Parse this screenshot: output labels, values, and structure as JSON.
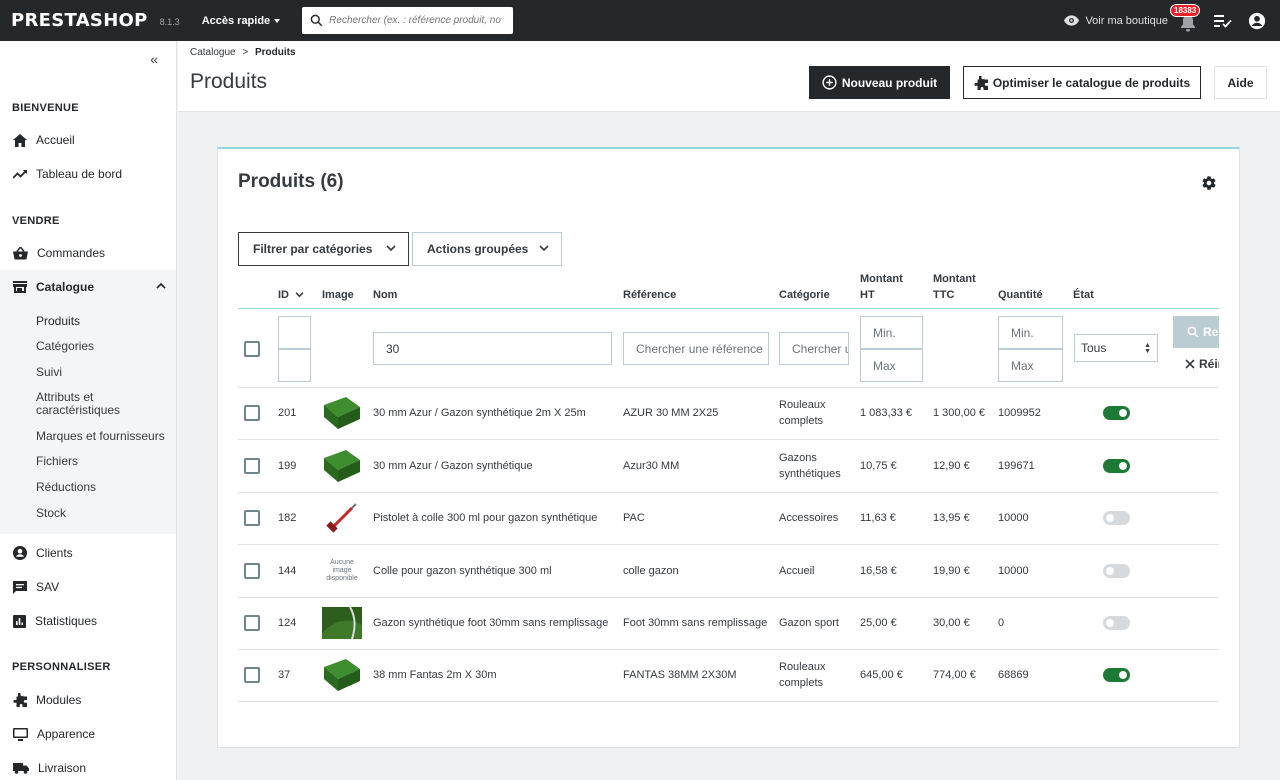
{
  "header": {
    "logo": "PRESTASHOP",
    "version": "8.1.3",
    "quick_access": "Accès rapide",
    "search_placeholder": "Rechercher (ex. : référence produit, no",
    "view_shop": "Voir ma boutique",
    "notif_count": "18383"
  },
  "sidebar": {
    "sections": {
      "welcome": "BIENVENUE",
      "sell": "VENDRE",
      "customize": "PERSONNALISER"
    },
    "items": {
      "home": "Accueil",
      "dashboard": "Tableau de bord",
      "orders": "Commandes",
      "catalog": "Catalogue",
      "clients": "Clients",
      "sav": "SAV",
      "stats": "Statistiques",
      "modules": "Modules",
      "appearance": "Apparence",
      "shipping": "Livraison"
    },
    "catalog_sub": [
      "Produits",
      "Catégories",
      "Suivi",
      "Attributs et caractéristiques",
      "Marques et fournisseurs",
      "Fichiers",
      "Réductions",
      "Stock"
    ]
  },
  "page": {
    "breadcrumb_parent": "Catalogue",
    "breadcrumb_sep": ">",
    "breadcrumb_current": "Produits",
    "title": "Produits",
    "new_product": "Nouveau produit",
    "optimize": "Optimiser le catalogue de produits",
    "help": "Aide"
  },
  "card": {
    "title": "Produits (6)",
    "filter_categories": "Filtrer par catégories",
    "bulk_actions": "Actions groupées"
  },
  "table": {
    "headers": {
      "id": "ID",
      "image": "Image",
      "name": "Nom",
      "reference": "Référence",
      "category": "Catégorie",
      "price_ht_1": "Montant",
      "price_ht_2": "HT",
      "price_ttc_1": "Montant",
      "price_ttc_2": "TTC",
      "quantity": "Quantité",
      "state": "État"
    },
    "filters": {
      "name_value": "30",
      "ref_placeholder": "Chercher une référence",
      "cat_placeholder": "Chercher une catégorie",
      "min_placeholder": "Min.",
      "max_placeholder": "Max",
      "state_value": "Tous",
      "search_btn": "Rechercher",
      "reset_btn": "Réinitialiser"
    },
    "no_image_text": "Aucune image disponible",
    "rows": [
      {
        "id": "201",
        "name": "30 mm Azur / Gazon synthétique 2m X 25m",
        "reference": "AZUR 30 MM 2X25",
        "cat1": "Rouleaux",
        "cat2": "complets",
        "ht": "1 083,33 €",
        "ttc": "1 300,00 €",
        "qty": "1009952",
        "active": true,
        "image": "grass"
      },
      {
        "id": "199",
        "name": "30 mm Azur / Gazon synthétique",
        "reference": "Azur30 MM",
        "cat1": "Gazons",
        "cat2": "synthétiques",
        "ht": "10,75 €",
        "ttc": "12,90 €",
        "qty": "199671",
        "active": true,
        "image": "grass"
      },
      {
        "id": "182",
        "name": "Pistolet à colle 300 ml pour gazon synthétique",
        "reference": "PAC",
        "cat1": "Accessoires",
        "cat2": "",
        "ht": "11,63 €",
        "ttc": "13,95 €",
        "qty": "10000",
        "active": false,
        "image": "gun"
      },
      {
        "id": "144",
        "name": "Colle pour gazon synthétique 300 ml",
        "reference": "colle gazon",
        "cat1": "Accueil",
        "cat2": "",
        "ht": "16,58 €",
        "ttc": "19,90 €",
        "qty": "10000",
        "active": false,
        "image": "none"
      },
      {
        "id": "124",
        "name": "Gazon synthétique foot 30mm sans remplissage",
        "reference": "Foot 30mm sans remplissage",
        "cat1": "Gazon sport",
        "cat2": "",
        "ht": "25,00 €",
        "ttc": "30,00 €",
        "qty": "0",
        "active": false,
        "image": "turf"
      },
      {
        "id": "37",
        "name": "38 mm Fantas 2m X 30m",
        "reference": "FANTAS 38MM 2X30M",
        "cat1": "Rouleaux",
        "cat2": "complets",
        "ht": "645,00 €",
        "ttc": "774,00 €",
        "qty": "68869",
        "active": true,
        "image": "grass"
      }
    ]
  },
  "colors": {
    "header_bg": "#25282b",
    "accent_teal": "#94d7dc",
    "toggle_on": "#1c7a34",
    "badge": "#e9222a"
  }
}
